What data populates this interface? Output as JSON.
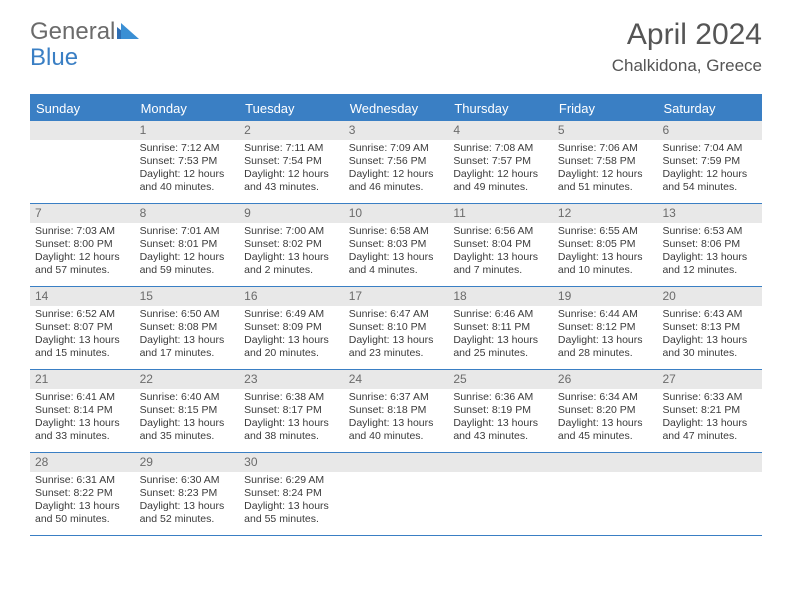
{
  "logo": {
    "text1": "General",
    "text2": "Blue"
  },
  "title": "April 2024",
  "location": "Chalkidona, Greece",
  "dayHeaders": [
    "Sunday",
    "Monday",
    "Tuesday",
    "Wednesday",
    "Thursday",
    "Friday",
    "Saturday"
  ],
  "colors": {
    "headerBlue": "#3a7fc4",
    "dayBarGray": "#e8e8e8",
    "textGray": "#555555"
  },
  "weeks": [
    [
      {
        "num": "",
        "lines": []
      },
      {
        "num": "1",
        "lines": [
          "Sunrise: 7:12 AM",
          "Sunset: 7:53 PM",
          "Daylight: 12 hours",
          "and 40 minutes."
        ]
      },
      {
        "num": "2",
        "lines": [
          "Sunrise: 7:11 AM",
          "Sunset: 7:54 PM",
          "Daylight: 12 hours",
          "and 43 minutes."
        ]
      },
      {
        "num": "3",
        "lines": [
          "Sunrise: 7:09 AM",
          "Sunset: 7:56 PM",
          "Daylight: 12 hours",
          "and 46 minutes."
        ]
      },
      {
        "num": "4",
        "lines": [
          "Sunrise: 7:08 AM",
          "Sunset: 7:57 PM",
          "Daylight: 12 hours",
          "and 49 minutes."
        ]
      },
      {
        "num": "5",
        "lines": [
          "Sunrise: 7:06 AM",
          "Sunset: 7:58 PM",
          "Daylight: 12 hours",
          "and 51 minutes."
        ]
      },
      {
        "num": "6",
        "lines": [
          "Sunrise: 7:04 AM",
          "Sunset: 7:59 PM",
          "Daylight: 12 hours",
          "and 54 minutes."
        ]
      }
    ],
    [
      {
        "num": "7",
        "lines": [
          "Sunrise: 7:03 AM",
          "Sunset: 8:00 PM",
          "Daylight: 12 hours",
          "and 57 minutes."
        ]
      },
      {
        "num": "8",
        "lines": [
          "Sunrise: 7:01 AM",
          "Sunset: 8:01 PM",
          "Daylight: 12 hours",
          "and 59 minutes."
        ]
      },
      {
        "num": "9",
        "lines": [
          "Sunrise: 7:00 AM",
          "Sunset: 8:02 PM",
          "Daylight: 13 hours",
          "and 2 minutes."
        ]
      },
      {
        "num": "10",
        "lines": [
          "Sunrise: 6:58 AM",
          "Sunset: 8:03 PM",
          "Daylight: 13 hours",
          "and 4 minutes."
        ]
      },
      {
        "num": "11",
        "lines": [
          "Sunrise: 6:56 AM",
          "Sunset: 8:04 PM",
          "Daylight: 13 hours",
          "and 7 minutes."
        ]
      },
      {
        "num": "12",
        "lines": [
          "Sunrise: 6:55 AM",
          "Sunset: 8:05 PM",
          "Daylight: 13 hours",
          "and 10 minutes."
        ]
      },
      {
        "num": "13",
        "lines": [
          "Sunrise: 6:53 AM",
          "Sunset: 8:06 PM",
          "Daylight: 13 hours",
          "and 12 minutes."
        ]
      }
    ],
    [
      {
        "num": "14",
        "lines": [
          "Sunrise: 6:52 AM",
          "Sunset: 8:07 PM",
          "Daylight: 13 hours",
          "and 15 minutes."
        ]
      },
      {
        "num": "15",
        "lines": [
          "Sunrise: 6:50 AM",
          "Sunset: 8:08 PM",
          "Daylight: 13 hours",
          "and 17 minutes."
        ]
      },
      {
        "num": "16",
        "lines": [
          "Sunrise: 6:49 AM",
          "Sunset: 8:09 PM",
          "Daylight: 13 hours",
          "and 20 minutes."
        ]
      },
      {
        "num": "17",
        "lines": [
          "Sunrise: 6:47 AM",
          "Sunset: 8:10 PM",
          "Daylight: 13 hours",
          "and 23 minutes."
        ]
      },
      {
        "num": "18",
        "lines": [
          "Sunrise: 6:46 AM",
          "Sunset: 8:11 PM",
          "Daylight: 13 hours",
          "and 25 minutes."
        ]
      },
      {
        "num": "19",
        "lines": [
          "Sunrise: 6:44 AM",
          "Sunset: 8:12 PM",
          "Daylight: 13 hours",
          "and 28 minutes."
        ]
      },
      {
        "num": "20",
        "lines": [
          "Sunrise: 6:43 AM",
          "Sunset: 8:13 PM",
          "Daylight: 13 hours",
          "and 30 minutes."
        ]
      }
    ],
    [
      {
        "num": "21",
        "lines": [
          "Sunrise: 6:41 AM",
          "Sunset: 8:14 PM",
          "Daylight: 13 hours",
          "and 33 minutes."
        ]
      },
      {
        "num": "22",
        "lines": [
          "Sunrise: 6:40 AM",
          "Sunset: 8:15 PM",
          "Daylight: 13 hours",
          "and 35 minutes."
        ]
      },
      {
        "num": "23",
        "lines": [
          "Sunrise: 6:38 AM",
          "Sunset: 8:17 PM",
          "Daylight: 13 hours",
          "and 38 minutes."
        ]
      },
      {
        "num": "24",
        "lines": [
          "Sunrise: 6:37 AM",
          "Sunset: 8:18 PM",
          "Daylight: 13 hours",
          "and 40 minutes."
        ]
      },
      {
        "num": "25",
        "lines": [
          "Sunrise: 6:36 AM",
          "Sunset: 8:19 PM",
          "Daylight: 13 hours",
          "and 43 minutes."
        ]
      },
      {
        "num": "26",
        "lines": [
          "Sunrise: 6:34 AM",
          "Sunset: 8:20 PM",
          "Daylight: 13 hours",
          "and 45 minutes."
        ]
      },
      {
        "num": "27",
        "lines": [
          "Sunrise: 6:33 AM",
          "Sunset: 8:21 PM",
          "Daylight: 13 hours",
          "and 47 minutes."
        ]
      }
    ],
    [
      {
        "num": "28",
        "lines": [
          "Sunrise: 6:31 AM",
          "Sunset: 8:22 PM",
          "Daylight: 13 hours",
          "and 50 minutes."
        ]
      },
      {
        "num": "29",
        "lines": [
          "Sunrise: 6:30 AM",
          "Sunset: 8:23 PM",
          "Daylight: 13 hours",
          "and 52 minutes."
        ]
      },
      {
        "num": "30",
        "lines": [
          "Sunrise: 6:29 AM",
          "Sunset: 8:24 PM",
          "Daylight: 13 hours",
          "and 55 minutes."
        ]
      },
      {
        "num": "",
        "lines": []
      },
      {
        "num": "",
        "lines": []
      },
      {
        "num": "",
        "lines": []
      },
      {
        "num": "",
        "lines": []
      }
    ]
  ]
}
